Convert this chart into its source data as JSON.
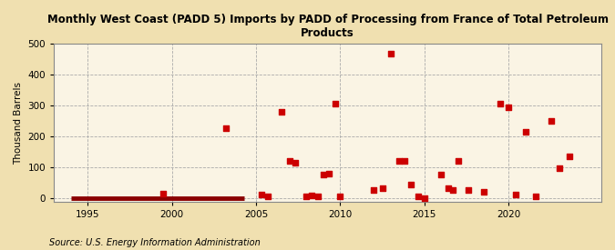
{
  "title": "Monthly West Coast (PADD 5) Imports by PADD of Processing from France of Total Petroleum\nProducts",
  "ylabel": "Thousand Barrels",
  "source": "Source: U.S. Energy Information Administration",
  "background_color": "#f0e0b0",
  "plot_background_color": "#faf4e4",
  "marker_color": "#cc0000",
  "line_color": "#8b0000",
  "xlim": [
    1993.0,
    2025.5
  ],
  "ylim": [
    -12,
    500
  ],
  "yticks": [
    0,
    100,
    200,
    300,
    400,
    500
  ],
  "xticks": [
    1995,
    2000,
    2005,
    2010,
    2015,
    2020
  ],
  "data_points": [
    [
      1999.5,
      15
    ],
    [
      2003.2,
      225
    ],
    [
      2005.3,
      10
    ],
    [
      2005.7,
      5
    ],
    [
      2006.5,
      280
    ],
    [
      2007.0,
      120
    ],
    [
      2007.3,
      115
    ],
    [
      2008.0,
      5
    ],
    [
      2008.3,
      8
    ],
    [
      2008.7,
      4
    ],
    [
      2009.0,
      75
    ],
    [
      2009.3,
      80
    ],
    [
      2009.7,
      305
    ],
    [
      2010.0,
      5
    ],
    [
      2012.0,
      25
    ],
    [
      2012.5,
      30
    ],
    [
      2013.0,
      468
    ],
    [
      2013.5,
      120
    ],
    [
      2013.8,
      120
    ],
    [
      2014.2,
      42
    ],
    [
      2014.6,
      5
    ],
    [
      2015.0,
      0
    ],
    [
      2016.0,
      75
    ],
    [
      2016.4,
      30
    ],
    [
      2016.7,
      25
    ],
    [
      2017.0,
      120
    ],
    [
      2017.6,
      25
    ],
    [
      2018.5,
      20
    ],
    [
      2019.5,
      305
    ],
    [
      2020.0,
      295
    ],
    [
      2020.4,
      10
    ],
    [
      2021.0,
      215
    ],
    [
      2021.6,
      5
    ],
    [
      2022.5,
      250
    ],
    [
      2023.0,
      95
    ],
    [
      2023.6,
      135
    ]
  ],
  "zero_line_start": 1994.0,
  "zero_line_end": 2004.3,
  "title_fontsize": 8.5,
  "ylabel_fontsize": 7.5,
  "tick_fontsize": 7.5,
  "source_fontsize": 7.0
}
